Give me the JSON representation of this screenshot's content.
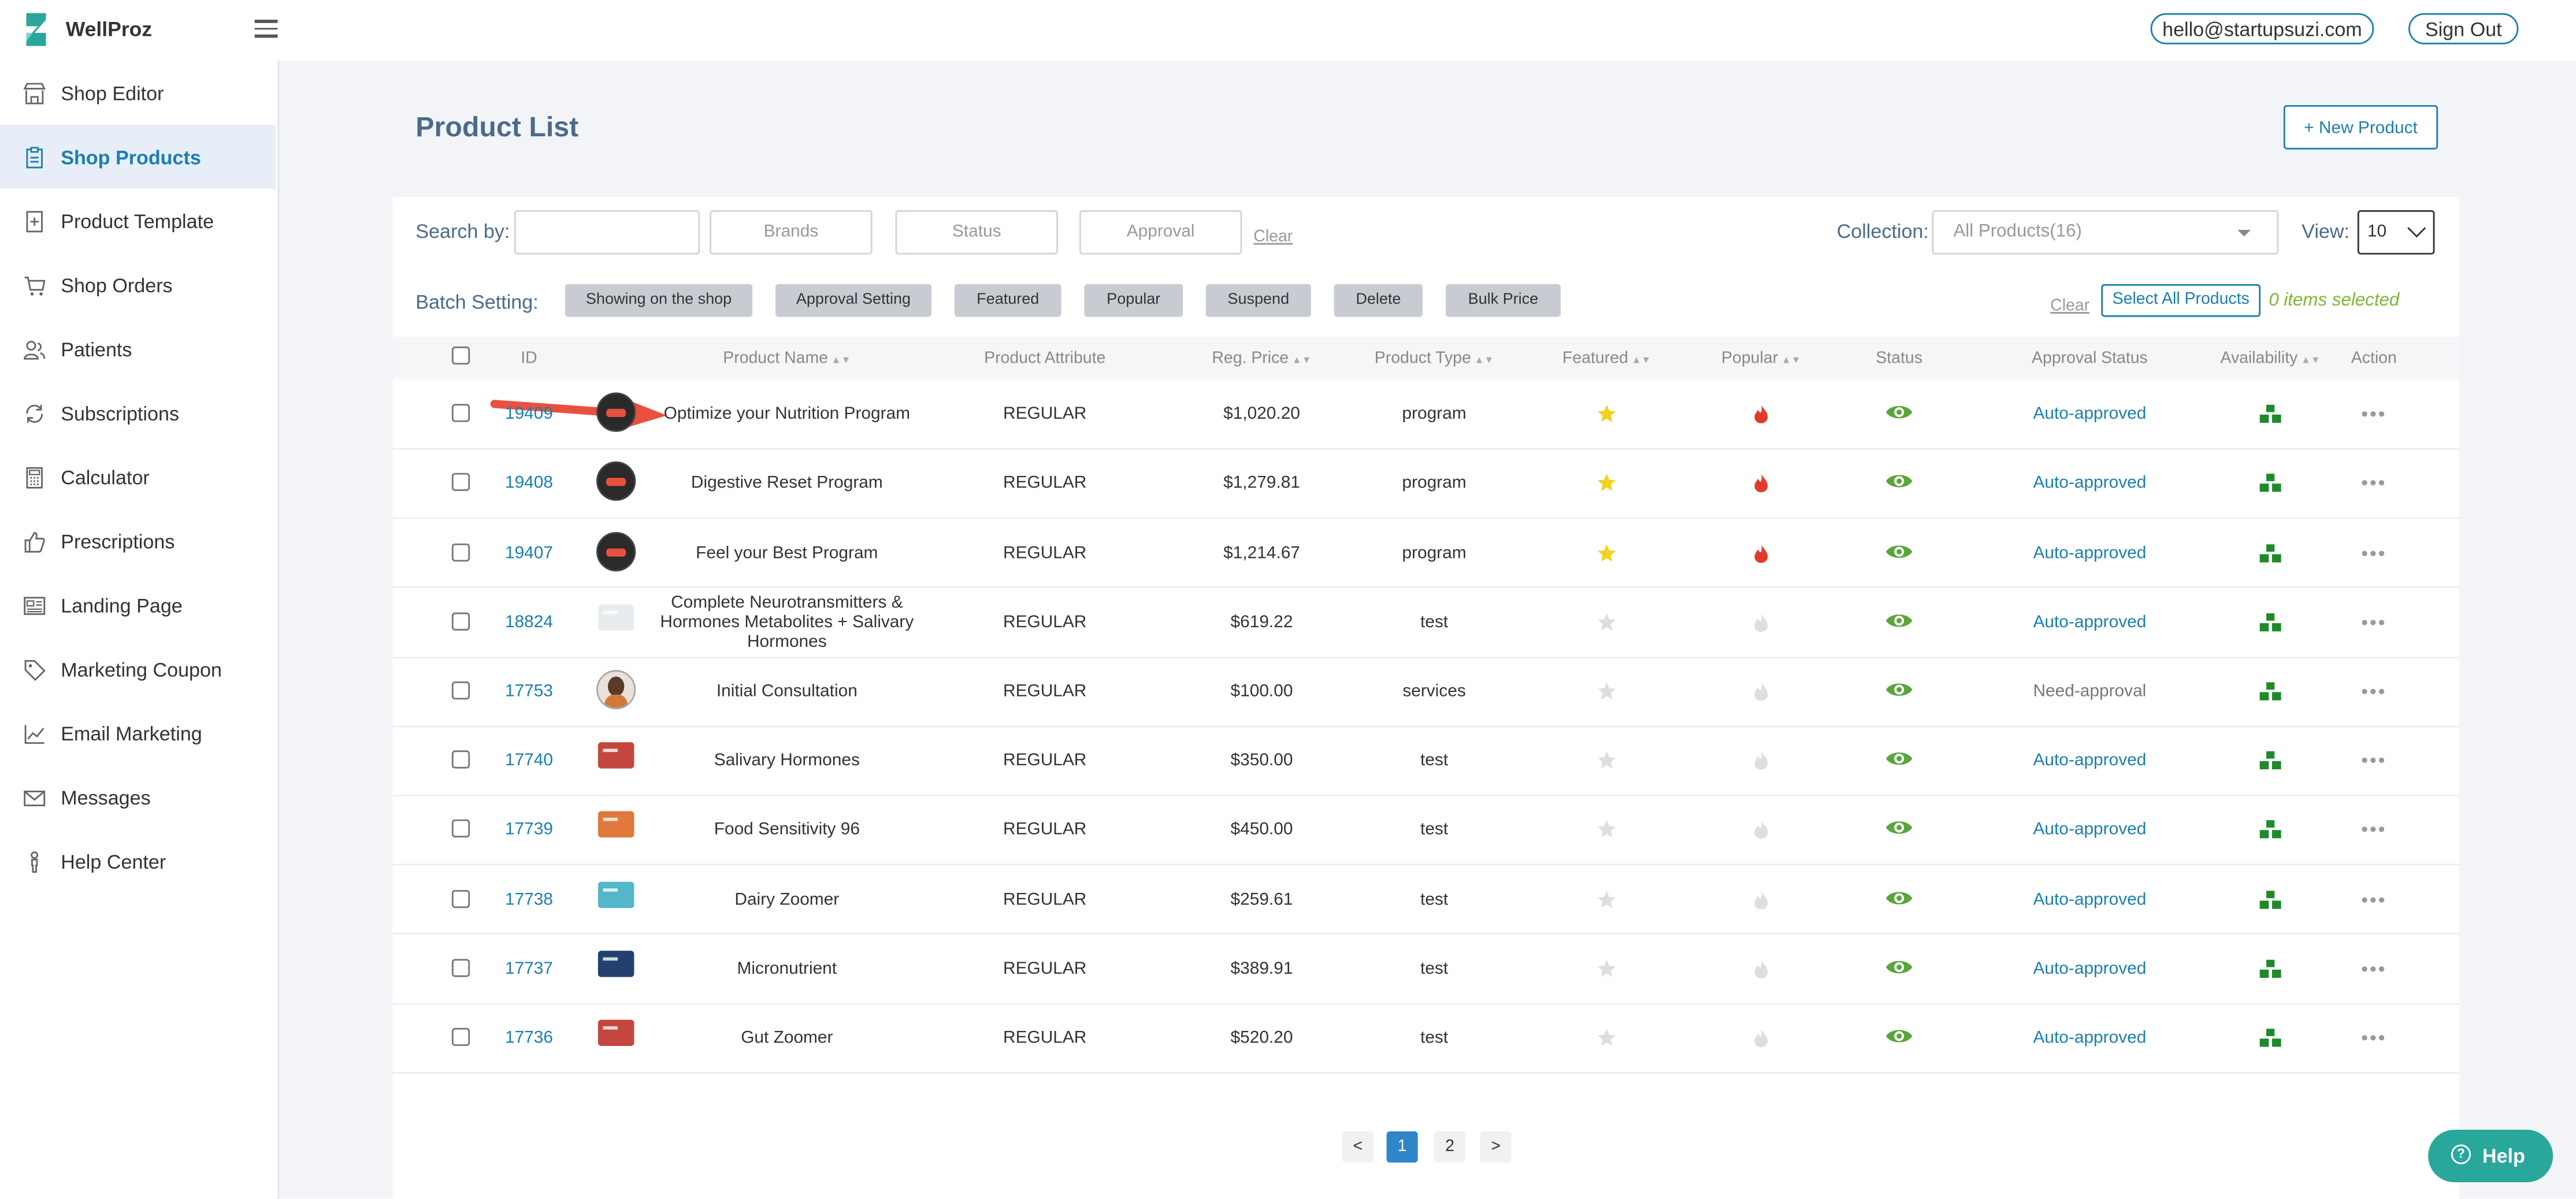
{
  "app": {
    "brand": "WellProz"
  },
  "header": {
    "email": "hello@startupsuzi.com",
    "sign_out": "Sign Out"
  },
  "sidebar": {
    "items": [
      {
        "label": "Shop Editor",
        "icon": "store-icon"
      },
      {
        "label": "Shop Products",
        "icon": "clipboard-icon",
        "active": true
      },
      {
        "label": "Product Template",
        "icon": "document-plus-icon"
      },
      {
        "label": "Shop Orders",
        "icon": "cart-icon"
      },
      {
        "label": "Patients",
        "icon": "users-icon"
      },
      {
        "label": "Subscriptions",
        "icon": "refresh-icon"
      },
      {
        "label": "Calculator",
        "icon": "calculator-icon"
      },
      {
        "label": "Prescriptions",
        "icon": "thumbs-up-icon"
      },
      {
        "label": "Landing Page",
        "icon": "landing-page-icon"
      },
      {
        "label": "Marketing Coupon",
        "icon": "tag-icon"
      },
      {
        "label": "Email Marketing",
        "icon": "chart-line-icon"
      },
      {
        "label": "Messages",
        "icon": "envelope-icon"
      },
      {
        "label": "Help Center",
        "icon": "person-icon"
      }
    ]
  },
  "main": {
    "title": "Product List",
    "new_product": "+ New Product",
    "search": {
      "label": "Search by:",
      "brands": "Brands",
      "status": "Status",
      "approval": "Approval",
      "clear": "Clear"
    },
    "collection": {
      "label": "Collection:",
      "value": "All Products(16)"
    },
    "view": {
      "label": "View:",
      "value": "10"
    },
    "batch": {
      "label": "Batch Setting:",
      "buttons": [
        "Showing on the shop",
        "Approval Setting",
        "Featured",
        "Popular",
        "Suspend",
        "Delete",
        "Bulk Price"
      ],
      "clear": "Clear",
      "select_all": "Select All Products",
      "selected": "0 items selected"
    },
    "table": {
      "headers": [
        "ID",
        "Product Name",
        "Product Attribute",
        "Reg. Price",
        "Product Type",
        "Featured",
        "Popular",
        "Status",
        "Approval Status",
        "Availability",
        "Action"
      ],
      "rows": [
        {
          "id": "19409",
          "name": "Optimize your Nutrition Program",
          "attribute": "REGULAR",
          "price": "$1,020.20",
          "type": "program",
          "featured": true,
          "popular": true,
          "approval": "Auto-approved",
          "thumb": "avatar-dark"
        },
        {
          "id": "19408",
          "name": "Digestive Reset Program",
          "attribute": "REGULAR",
          "price": "$1,279.81",
          "type": "program",
          "featured": true,
          "popular": true,
          "approval": "Auto-approved",
          "thumb": "avatar-dark"
        },
        {
          "id": "19407",
          "name": "Feel your Best Program",
          "attribute": "REGULAR",
          "price": "$1,214.67",
          "type": "program",
          "featured": true,
          "popular": true,
          "approval": "Auto-approved",
          "thumb": "avatar-dark"
        },
        {
          "id": "18824",
          "name": "Complete Neurotransmitters & Hormones Metabolites + Salivary Hormones",
          "attribute": "REGULAR",
          "price": "$619.22",
          "type": "test",
          "featured": false,
          "popular": false,
          "approval": "Auto-approved",
          "thumb": "kit-white"
        },
        {
          "id": "17753",
          "name": "Initial Consultation",
          "attribute": "REGULAR",
          "price": "$100.00",
          "type": "services",
          "featured": false,
          "popular": false,
          "approval": "Need-approval",
          "thumb": "avatar-person"
        },
        {
          "id": "17740",
          "name": "Salivary Hormones",
          "attribute": "REGULAR",
          "price": "$350.00",
          "type": "test",
          "featured": false,
          "popular": false,
          "approval": "Auto-approved",
          "thumb": "box-red"
        },
        {
          "id": "17739",
          "name": "Food Sensitivity 96",
          "attribute": "REGULAR",
          "price": "$450.00",
          "type": "test",
          "featured": false,
          "popular": false,
          "approval": "Auto-approved",
          "thumb": "box-orange"
        },
        {
          "id": "17738",
          "name": "Dairy Zoomer",
          "attribute": "REGULAR",
          "price": "$259.61",
          "type": "test",
          "featured": false,
          "popular": false,
          "approval": "Auto-approved",
          "thumb": "box-teal"
        },
        {
          "id": "17737",
          "name": "Micronutrient",
          "attribute": "REGULAR",
          "price": "$389.91",
          "type": "test",
          "featured": false,
          "popular": false,
          "approval": "Auto-approved",
          "thumb": "box-navy"
        },
        {
          "id": "17736",
          "name": "Gut Zoomer",
          "attribute": "REGULAR",
          "price": "$520.20",
          "type": "test",
          "featured": false,
          "popular": false,
          "approval": "Auto-approved",
          "thumb": "box-red"
        }
      ]
    },
    "pagination": {
      "prev": "<",
      "pages": [
        "1",
        "2"
      ],
      "next": ">",
      "current": "1"
    }
  },
  "help": {
    "label": "Help"
  },
  "colors": {
    "accent": "#1a7fb0",
    "title": "#4a6b8c",
    "green": "#5aa63a",
    "star": "#f4d020",
    "fire": "#e23b2e",
    "selected": "#7cb82f"
  }
}
